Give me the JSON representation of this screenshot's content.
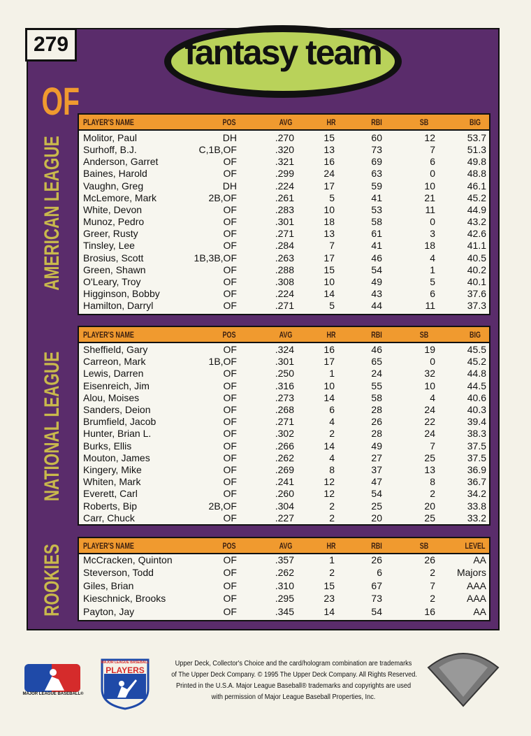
{
  "card_number": "279",
  "title": "fantasy team",
  "position": "OF",
  "sections": [
    {
      "label": "AMERICAN LEAGUE",
      "headers": [
        "PLAYER'S NAME",
        "POS",
        "AVG",
        "HR",
        "RBI",
        "SB",
        "BIG"
      ],
      "rows": [
        [
          "Molitor, Paul",
          "DH",
          ".270",
          "15",
          "60",
          "12",
          "53.7"
        ],
        [
          "Surhoff, B.J.",
          "C,1B,OF",
          ".320",
          "13",
          "73",
          "7",
          "51.3"
        ],
        [
          "Anderson, Garret",
          "OF",
          ".321",
          "16",
          "69",
          "6",
          "49.8"
        ],
        [
          "Baines, Harold",
          "OF",
          ".299",
          "24",
          "63",
          "0",
          "48.8"
        ],
        [
          "Vaughn, Greg",
          "DH",
          ".224",
          "17",
          "59",
          "10",
          "46.1"
        ],
        [
          "McLemore, Mark",
          "2B,OF",
          ".261",
          "5",
          "41",
          "21",
          "45.2"
        ],
        [
          "White, Devon",
          "OF",
          ".283",
          "10",
          "53",
          "11",
          "44.9"
        ],
        [
          "Munoz, Pedro",
          "OF",
          ".301",
          "18",
          "58",
          "0",
          "43.2"
        ],
        [
          "Greer, Rusty",
          "OF",
          ".271",
          "13",
          "61",
          "3",
          "42.6"
        ],
        [
          "Tinsley, Lee",
          "OF",
          ".284",
          "7",
          "41",
          "18",
          "41.1"
        ],
        [
          "Brosius, Scott",
          "1B,3B,OF",
          ".263",
          "17",
          "46",
          "4",
          "40.5"
        ],
        [
          "Green, Shawn",
          "OF",
          ".288",
          "15",
          "54",
          "1",
          "40.2"
        ],
        [
          "O'Leary, Troy",
          "OF",
          ".308",
          "10",
          "49",
          "5",
          "40.1"
        ],
        [
          "Higginson, Bobby",
          "OF",
          ".224",
          "14",
          "43",
          "6",
          "37.6"
        ],
        [
          "Hamilton, Darryl",
          "OF",
          ".271",
          "5",
          "44",
          "11",
          "37.3"
        ]
      ]
    },
    {
      "label": "NATIONAL LEAGUE",
      "headers": [
        "PLAYER'S NAME",
        "POS",
        "AVG",
        "HR",
        "RBI",
        "SB",
        "BIG"
      ],
      "rows": [
        [
          "Sheffield, Gary",
          "OF",
          ".324",
          "16",
          "46",
          "19",
          "45.5"
        ],
        [
          "Carreon, Mark",
          "1B,OF",
          ".301",
          "17",
          "65",
          "0",
          "45.2"
        ],
        [
          "Lewis, Darren",
          "OF",
          ".250",
          "1",
          "24",
          "32",
          "44.8"
        ],
        [
          "Eisenreich, Jim",
          "OF",
          ".316",
          "10",
          "55",
          "10",
          "44.5"
        ],
        [
          "Alou, Moises",
          "OF",
          ".273",
          "14",
          "58",
          "4",
          "40.6"
        ],
        [
          "Sanders, Deion",
          "OF",
          ".268",
          "6",
          "28",
          "24",
          "40.3"
        ],
        [
          "Brumfield, Jacob",
          "OF",
          ".271",
          "4",
          "26",
          "22",
          "39.4"
        ],
        [
          "Hunter, Brian L.",
          "OF",
          ".302",
          "2",
          "28",
          "24",
          "38.3"
        ],
        [
          "Burks, Ellis",
          "OF",
          ".266",
          "14",
          "49",
          "7",
          "37.5"
        ],
        [
          "Mouton, James",
          "OF",
          ".262",
          "4",
          "27",
          "25",
          "37.5"
        ],
        [
          "Kingery, Mike",
          "OF",
          ".269",
          "8",
          "37",
          "13",
          "36.9"
        ],
        [
          "Whiten, Mark",
          "OF",
          ".241",
          "12",
          "47",
          "8",
          "36.7"
        ],
        [
          "Everett, Carl",
          "OF",
          ".260",
          "12",
          "54",
          "2",
          "34.2"
        ],
        [
          "Roberts, Bip",
          "2B,OF",
          ".304",
          "2",
          "25",
          "20",
          "33.8"
        ],
        [
          "Carr, Chuck",
          "OF",
          ".227",
          "2",
          "20",
          "25",
          "33.2"
        ]
      ]
    },
    {
      "label": "ROOKIES",
      "headers": [
        "PLAYER'S NAME",
        "POS",
        "AVG",
        "HR",
        "RBI",
        "SB",
        "LEVEL"
      ],
      "rows": [
        [
          "McCracken, Quinton",
          "OF",
          ".357",
          "1",
          "26",
          "26",
          "AA"
        ],
        [
          "Steverson, Todd",
          "OF",
          ".262",
          "2",
          "6",
          "2",
          "Majors"
        ],
        [
          "Giles, Brian",
          "OF",
          ".310",
          "15",
          "67",
          "7",
          "AAA"
        ],
        [
          "Kieschnick, Brooks",
          "OF",
          ".295",
          "23",
          "73",
          "2",
          "AAA"
        ],
        [
          "Payton, Jay",
          "OF",
          ".345",
          "14",
          "54",
          "16",
          "AA"
        ]
      ]
    }
  ],
  "footer": {
    "mlb_logo": "MAJOR LEAGUE BASEBALL®",
    "players_top": "MAJOR LEAGUE BASEBALL",
    "players": "PLAYERS",
    "legal": [
      "Upper Deck, Collector's Choice and the card/hologram combination are trademarks",
      "of The Upper Deck Company. © 1995 The Upper Deck Company. All Rights Reserved.",
      "Printed in the U.S.A. Major League Baseball® trademarks and copyrights are used",
      "with permission of Major League Baseball Properties, Inc."
    ]
  }
}
